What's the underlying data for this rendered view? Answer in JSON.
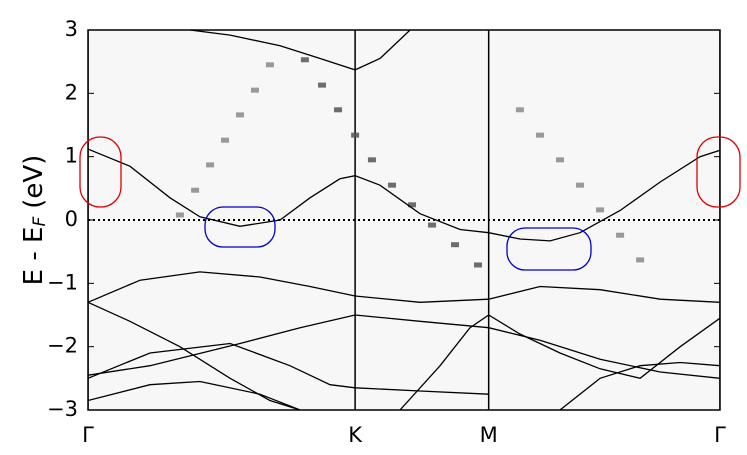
{
  "chart_data": {
    "type": "line",
    "ylabel": [
      "E - E",
      "F",
      "(eV)"
    ],
    "xlim": [
      0,
      2.366
    ],
    "xticks": [
      {
        "value": 0,
        "label": "Γ"
      },
      {
        "value": 1,
        "label": "K"
      },
      {
        "value": 1.5,
        "label": "M"
      },
      {
        "value": 2.366,
        "label": "Γ"
      }
    ],
    "ylim": [
      -3,
      3
    ],
    "yticks": [
      {
        "value": -3,
        "label": "−3"
      },
      {
        "value": -2,
        "label": "−2"
      },
      {
        "value": -1,
        "label": "−1"
      },
      0,
      1,
      2,
      3
    ],
    "fermi_level": 0,
    "series": [
      {
        "color": "#000000",
        "x": [
          0,
          0.157,
          0.307,
          0.419,
          0.569,
          0.719,
          0.831,
          0.943,
          1.0,
          1.093,
          1.243,
          1.393,
          1.5,
          1.617,
          1.73,
          1.842,
          1.992,
          2.142,
          2.291,
          2.366
        ],
        "values": [
          1.12,
          0.85,
          0.35,
          0.05,
          -0.1,
          0.0,
          0.35,
          0.65,
          0.7,
          0.55,
          0.1,
          -0.15,
          -0.2,
          -0.3,
          -0.33,
          -0.2,
          0.15,
          0.6,
          1.0,
          1.1
        ]
      },
      {
        "color": "#000000",
        "x": [
          0.382,
          0.532,
          0.719,
          0.869,
          1.0,
          1.093,
          1.206
        ],
        "values": [
          3.0,
          2.92,
          2.75,
          2.55,
          2.37,
          2.55,
          3.0
        ]
      },
      {
        "color": "#000000",
        "x": [
          0,
          0.195,
          0.419,
          0.644,
          0.831,
          1.0,
          1.243,
          1.5,
          1.692,
          1.917,
          2.142,
          2.366
        ],
        "values": [
          -1.3,
          -0.95,
          -0.82,
          -0.9,
          -1.05,
          -1.2,
          -1.3,
          -1.25,
          -1.05,
          -1.1,
          -1.25,
          -1.3
        ]
      },
      {
        "color": "#000000",
        "x": [
          0,
          0.157,
          0.344,
          0.532,
          0.681,
          0.794
        ],
        "values": [
          -1.3,
          -1.6,
          -2.0,
          -2.5,
          -2.85,
          -3.0
        ]
      },
      {
        "color": "#000000",
        "x": [
          0,
          0.232,
          0.569,
          0.794,
          1.0,
          1.243,
          1.5,
          1.692,
          1.917,
          2.142,
          2.366
        ],
        "values": [
          -2.45,
          -2.3,
          -1.95,
          -1.7,
          -1.5,
          -1.6,
          -1.7,
          -1.9,
          -2.2,
          -2.4,
          -2.5
        ]
      },
      {
        "color": "#000000",
        "x": [
          0,
          0.232,
          0.532,
          0.756,
          0.906,
          1.0,
          1.243,
          1.5
        ],
        "values": [
          -2.5,
          -2.1,
          -1.95,
          -2.3,
          -2.6,
          -2.65,
          -2.7,
          -2.75
        ]
      },
      {
        "color": "#000000",
        "x": [
          0,
          0.232,
          0.419,
          0.644,
          0.794
        ],
        "values": [
          -2.85,
          -2.6,
          -2.55,
          -2.75,
          -3.0
        ]
      },
      {
        "color": "#000000",
        "x": [
          1.168,
          1.318,
          1.43,
          1.5,
          1.617,
          1.767,
          1.917,
          2.067,
          2.217,
          2.366
        ],
        "values": [
          -3.0,
          -2.3,
          -1.7,
          -1.5,
          -1.8,
          -2.1,
          -2.35,
          -2.5,
          -2.0,
          -1.55
        ]
      },
      {
        "color": "#000000",
        "x": [
          1.767,
          1.917,
          2.067,
          2.217,
          2.366
        ],
        "values": [
          -3.0,
          -2.5,
          -2.3,
          -2.25,
          -2.3
        ]
      }
    ],
    "weights": [
      {
        "color": "#555555",
        "x": [
          0.812,
          0.876,
          0.936,
          1.0,
          1.063,
          1.138,
          1.213,
          1.288,
          1.374,
          1.46
        ],
        "values": [
          2.53,
          2.13,
          1.74,
          1.34,
          0.95,
          0.55,
          0.24,
          -0.08,
          -0.39,
          -0.71
        ]
      },
      {
        "color": "#888888",
        "x": [
          0.344,
          0.401,
          0.457,
          0.513,
          0.569,
          0.625,
          0.681
        ],
        "values": [
          0.08,
          0.47,
          0.87,
          1.26,
          1.66,
          2.05,
          2.45
        ]
      },
      {
        "color": "#888888",
        "x": [
          1.617,
          1.692,
          1.767,
          1.842,
          1.917,
          1.992,
          2.067
        ],
        "values": [
          1.74,
          1.34,
          0.95,
          0.55,
          0.16,
          -0.24,
          -0.63
        ]
      }
    ]
  }
}
